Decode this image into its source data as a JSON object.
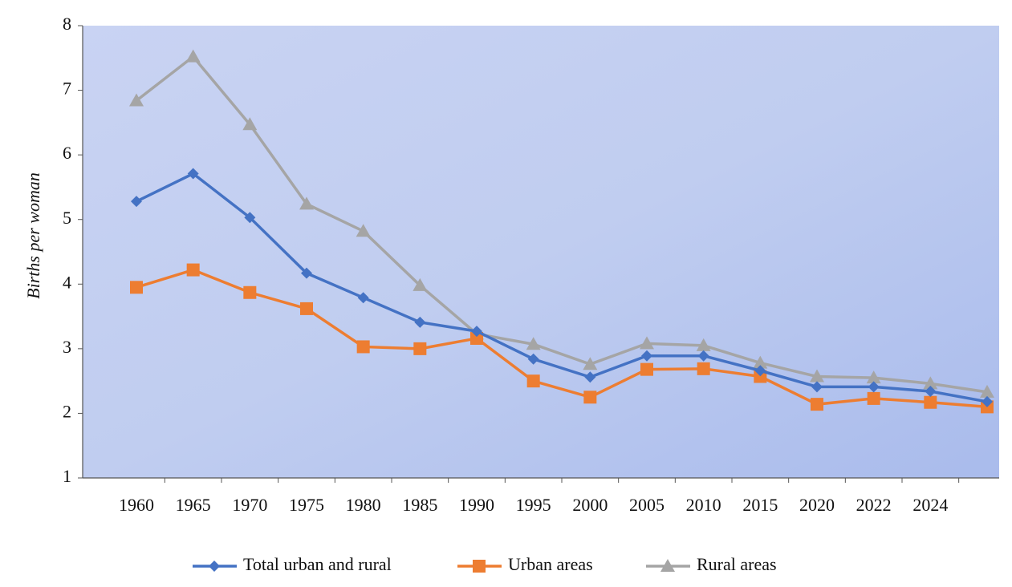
{
  "chart_data": {
    "type": "line",
    "y_label": "Births per woman",
    "categories": [
      "1960",
      "1965",
      "1970",
      "1975",
      "1980",
      "1985",
      "1990",
      "1995",
      "2000",
      "2005",
      "2010",
      "2015",
      "2020",
      "2022",
      "2024",
      null
    ],
    "series": [
      {
        "name": "Total urban and rural",
        "color": "#4472c4",
        "marker": "diamond",
        "values": [
          5.28,
          5.71,
          5.03,
          4.17,
          3.79,
          3.41,
          3.27,
          2.84,
          2.56,
          2.89,
          2.89,
          2.66,
          2.41,
          2.41,
          2.34,
          2.18
        ]
      },
      {
        "name": "Urban areas",
        "color": "#ed7d31",
        "marker": "square",
        "values": [
          3.95,
          4.22,
          3.87,
          3.62,
          3.03,
          3.0,
          3.16,
          2.5,
          2.25,
          2.68,
          2.69,
          2.57,
          2.14,
          2.23,
          2.17,
          2.1
        ]
      },
      {
        "name": "Rural areas",
        "color": "#a5a5a5",
        "marker": "triangle",
        "values": [
          6.84,
          7.52,
          6.47,
          5.24,
          4.82,
          3.98,
          3.23,
          3.07,
          2.76,
          3.08,
          3.05,
          2.78,
          2.57,
          2.55,
          2.46,
          2.33
        ]
      }
    ],
    "ylim": [
      1,
      8
    ],
    "yticks": [
      1,
      2,
      3,
      4,
      5,
      6,
      7,
      8
    ],
    "legend": "bottom"
  }
}
